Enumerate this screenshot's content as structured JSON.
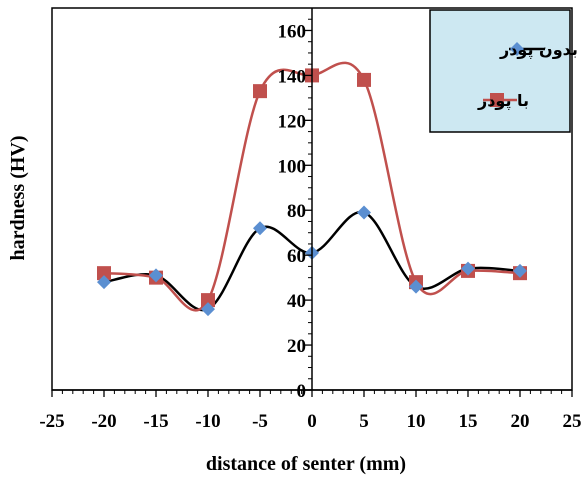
{
  "chart_data": {
    "type": "line",
    "xlabel": "distance of senter (mm)",
    "ylabel": "hardness (HV)",
    "xlim": [
      -25,
      25
    ],
    "ylim": [
      0,
      170
    ],
    "xticks": [
      -25,
      -20,
      -15,
      -10,
      -5,
      0,
      5,
      10,
      15,
      20,
      25
    ],
    "yticks": [
      0,
      20,
      40,
      60,
      80,
      100,
      120,
      140,
      160
    ],
    "x_tick_labels": [
      "-25",
      "-20",
      "-15",
      "-10",
      "-5",
      "0",
      "5",
      "10",
      "15",
      "20",
      "25"
    ],
    "y_tick_labels": [
      "0",
      "20",
      "40",
      "60",
      "80",
      "100",
      "120",
      "140",
      "160"
    ],
    "grid": false,
    "legend_position": "top-right",
    "x": [
      -20,
      -15,
      -10,
      -5,
      0,
      5,
      10,
      15,
      20
    ],
    "series": [
      {
        "name": "بدون پودر",
        "marker": "diamond",
        "color": "#5B8FD1",
        "line_color": "#000000",
        "values": [
          48,
          51,
          36,
          72,
          61,
          79,
          46,
          54,
          53
        ]
      },
      {
        "name": "با پودر",
        "marker": "square",
        "color": "#C0504D",
        "line_color": "#C0504D",
        "values": [
          52,
          50,
          40,
          133,
          140,
          138,
          48,
          53,
          52
        ]
      }
    ]
  }
}
